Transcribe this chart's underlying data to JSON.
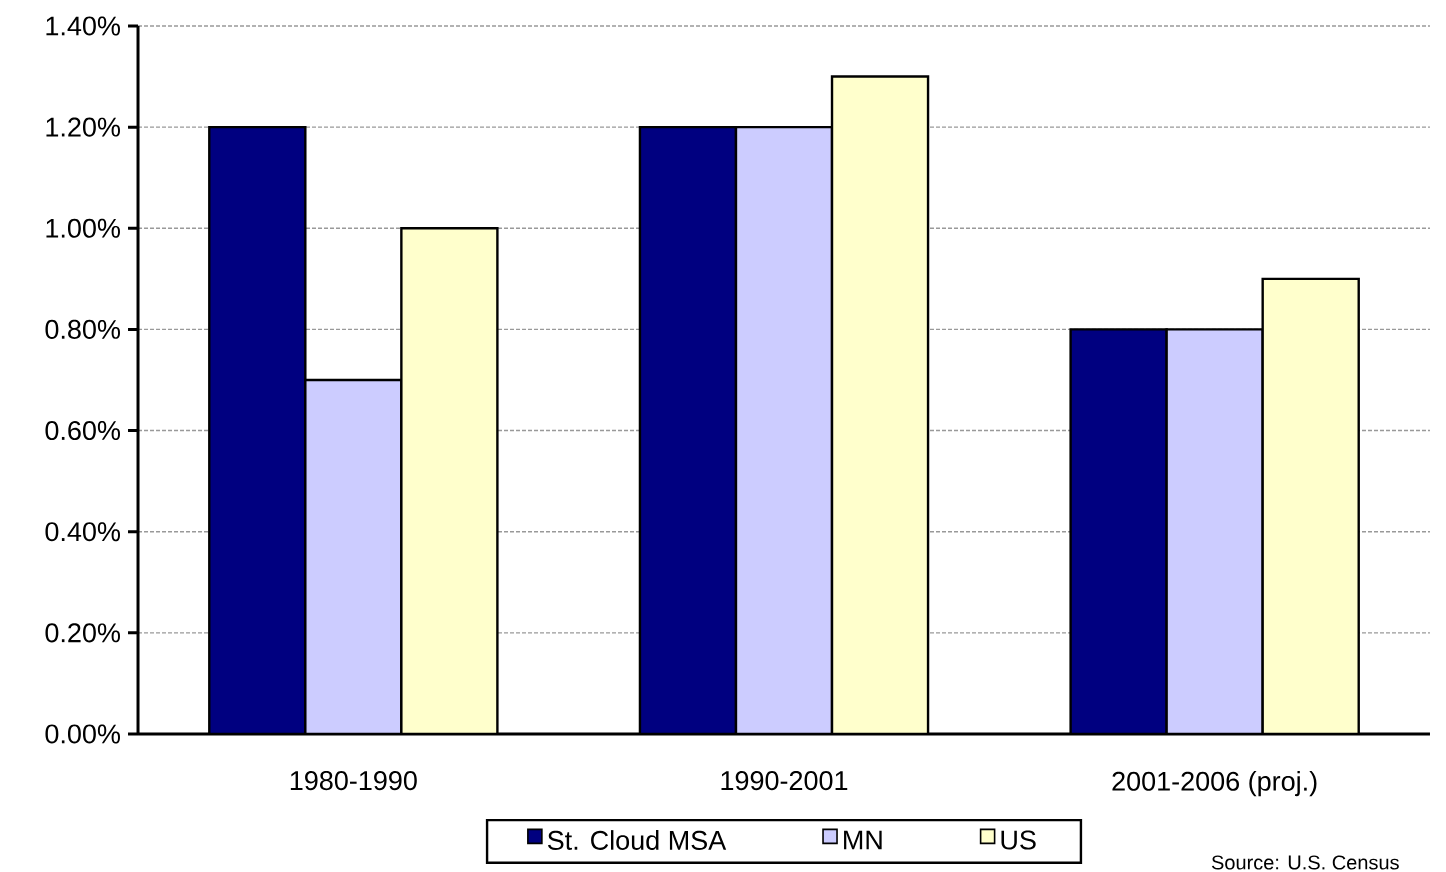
{
  "chart_data": {
    "type": "bar",
    "categories": [
      "1980-1990",
      "1990-2001",
      "2001-2006 (proj.)"
    ],
    "series": [
      {
        "name": "St. Cloud MSA",
        "color": "#000080",
        "values": [
          1.2,
          1.2,
          0.8
        ]
      },
      {
        "name": "MN",
        "color": "#ccccff",
        "values": [
          0.7,
          1.2,
          0.8
        ]
      },
      {
        "name": "US",
        "color": "#ffffcc",
        "values": [
          1.0,
          1.3,
          0.9
        ]
      }
    ],
    "ylim": [
      0,
      1.4
    ],
    "yticks": [
      {
        "value": 0,
        "label": "0.00%"
      },
      {
        "value": 0.2,
        "label": "0.20%"
      },
      {
        "value": 0.4,
        "label": "0.40%"
      },
      {
        "value": 0.6,
        "label": "0.60%"
      },
      {
        "value": 0.8,
        "label": "0.80%"
      },
      {
        "value": 1.0,
        "label": "1.00%"
      },
      {
        "value": 1.2,
        "label": "1.20%"
      },
      {
        "value": 1.4,
        "label": "1.40%"
      }
    ],
    "grid": "y",
    "legend": "bottom",
    "annotations": [
      "Source: U.S. Census"
    ]
  }
}
